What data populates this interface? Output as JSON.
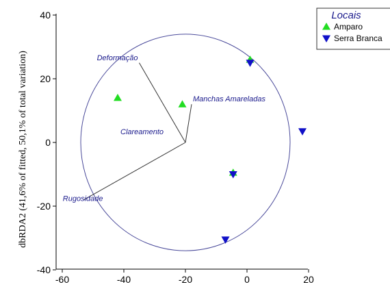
{
  "chart_data": {
    "type": "scatter",
    "title": "",
    "xlabel": "",
    "ylabel": "dbRDA2 (41,6% of fitted, 50,1% of total variation)",
    "xlim": [
      -62,
      23
    ],
    "ylim": [
      -42,
      40
    ],
    "x_ticks": [
      "-60",
      "-40",
      "-20",
      "0",
      "20"
    ],
    "y_ticks": [
      "40",
      "20",
      "0",
      "-20",
      "-40"
    ],
    "x_tick_values": [
      -60,
      -40,
      -20,
      0,
      20
    ],
    "y_tick_values": [
      40,
      20,
      0,
      -20,
      -40
    ],
    "grid": false,
    "legend": {
      "title": "Locais",
      "placement": "top-right"
    },
    "series": [
      {
        "name": "Amparo",
        "marker": "triangle-up",
        "color": "#22dd22",
        "points": [
          {
            "x": -42,
            "y": 14
          },
          {
            "x": -21,
            "y": 12
          },
          {
            "x": 1,
            "y": 26
          },
          {
            "x": -4.5,
            "y": -9.5
          }
        ]
      },
      {
        "name": "Serra Branca",
        "marker": "triangle-down",
        "color": "#1010c8",
        "points": [
          {
            "x": 1,
            "y": 25
          },
          {
            "x": 18,
            "y": 3.5
          },
          {
            "x": -4.5,
            "y": -10
          },
          {
            "x": -7,
            "y": -30.5
          }
        ]
      }
    ],
    "circle": {
      "center": [
        -20,
        0
      ],
      "radius": 34,
      "color": "#4a4a9a"
    },
    "vectors": [
      {
        "label": "Deformação",
        "x": -35,
        "y": 25
      },
      {
        "label": "Manchas Amareladas",
        "x": -18,
        "y": 12
      },
      {
        "label": "Clareamento",
        "x": -20,
        "y": 0
      },
      {
        "label": "Rugosidade",
        "x": -53,
        "y": -18
      }
    ]
  }
}
